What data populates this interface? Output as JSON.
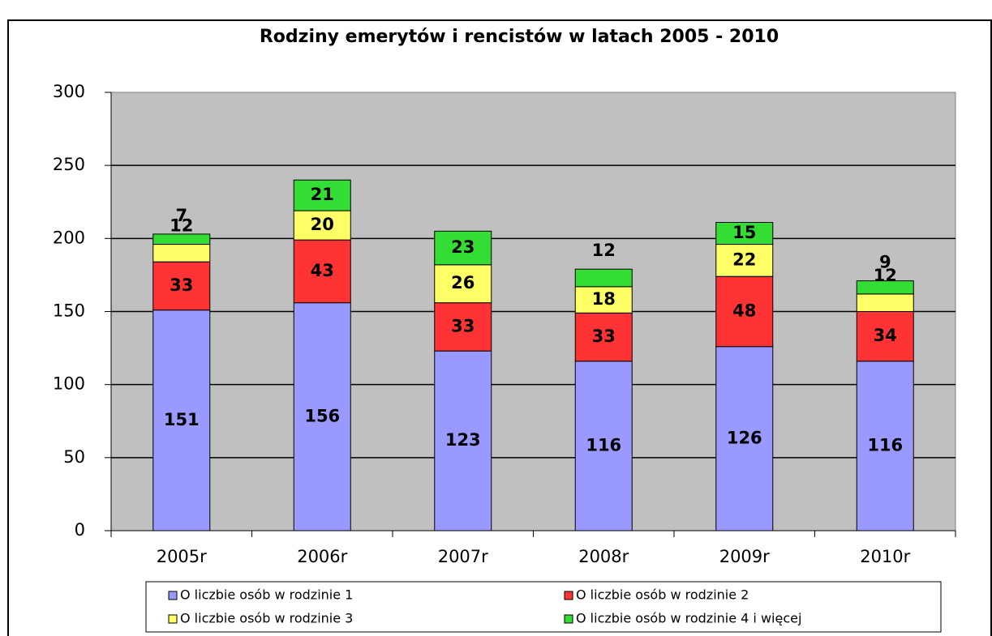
{
  "chart_data": {
    "type": "stacked_bar",
    "title": "Rodziny emerytów i rencistów w latach 2005 - 2010",
    "categories": [
      "2005r",
      "2006r",
      "2007r",
      "2008r",
      "2009r",
      "2010r"
    ],
    "series": [
      {
        "name": "O liczbie osób w rodzinie 1",
        "color": "#9999ff",
        "values": [
          151,
          156,
          123,
          116,
          126,
          116
        ]
      },
      {
        "name": "O liczbie osób w rodzinie 2",
        "color": "#ff3333",
        "values": [
          33,
          43,
          33,
          33,
          48,
          34
        ]
      },
      {
        "name": "O liczbie osób w rodzinie 3",
        "color": "#ffff66",
        "values": [
          12,
          20,
          26,
          18,
          22,
          12
        ]
      },
      {
        "name": "O liczbie osób w rodzinie 4 i więcej",
        "color": "#33dd33",
        "values": [
          7,
          21,
          23,
          12,
          15,
          9
        ]
      }
    ],
    "ylim": [
      0,
      300
    ],
    "yticks": [
      0,
      50,
      100,
      150,
      200,
      250,
      300
    ],
    "grid": true
  }
}
